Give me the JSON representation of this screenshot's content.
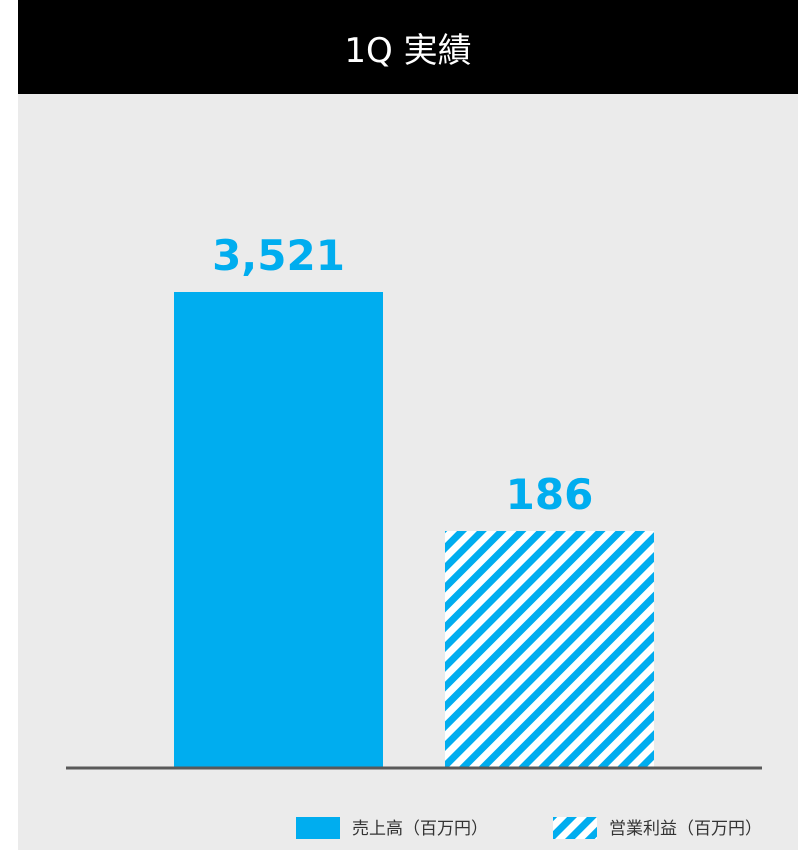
{
  "header": {
    "title": "1Q 実績"
  },
  "colors": {
    "accent": "#00adef",
    "baseline": "#595959",
    "header_bg": "#000000",
    "panel_bg": "#ebebeb"
  },
  "chart_data": {
    "type": "bar",
    "title": "1Q 実績",
    "series": [
      {
        "name": "売上高（百万円）",
        "value": 3521,
        "label": "3,521",
        "fill": "solid"
      },
      {
        "name": "営業利益（百万円）",
        "value": 186,
        "label": "186",
        "fill": "hatched"
      }
    ],
    "legend_position": "bottom-right",
    "grid": false
  }
}
